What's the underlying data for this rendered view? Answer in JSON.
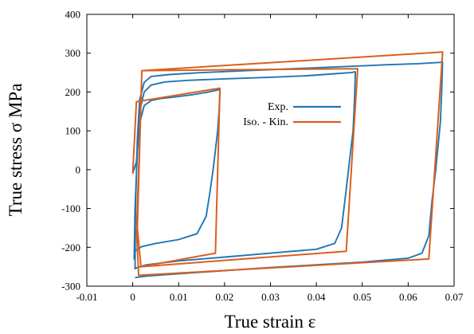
{
  "chart_data": {
    "type": "line",
    "xlabel": "True strain ε",
    "ylabel": "True stress σ MPa",
    "xlim": [
      -0.01,
      0.07
    ],
    "ylim": [
      -300,
      400
    ],
    "xticks": [
      "-0.01",
      "0",
      "0.01",
      "0.02",
      "0.03",
      "0.04",
      "0.05",
      "0.06",
      "0.07"
    ],
    "yticks": [
      "-300",
      "-200",
      "-100",
      "0",
      "100",
      "200",
      "300",
      "400"
    ],
    "grid": false,
    "legend_position": "center",
    "series": [
      {
        "name": "Exp.",
        "color": "#1f77b4",
        "x": [
          0.0,
          0.0008,
          0.0015,
          0.0025,
          0.004,
          0.006,
          0.009,
          0.013,
          0.0165,
          0.0185,
          0.019,
          0.0188,
          0.0185,
          0.018,
          0.0175,
          0.0168,
          0.016,
          0.014,
          0.01,
          0.005,
          0.002,
          0.001,
          0.0005,
          0.0003,
          0.0005,
          0.001,
          0.0015,
          0.0025,
          0.004,
          0.007,
          0.012,
          0.02,
          0.03,
          0.038,
          0.044,
          0.0475,
          0.0485,
          0.0483,
          0.048,
          0.0475,
          0.047,
          0.0462,
          0.0455,
          0.044,
          0.04,
          0.03,
          0.02,
          0.01,
          0.003,
          0.001,
          0.0005,
          0.0006,
          0.001,
          0.0015,
          0.0025,
          0.004,
          0.008,
          0.015,
          0.025,
          0.035,
          0.045,
          0.055,
          0.062,
          0.0665,
          0.0675,
          0.0673,
          0.067,
          0.0665,
          0.066,
          0.0652,
          0.0645,
          0.063,
          0.06,
          0.05,
          0.04,
          0.03,
          0.02,
          0.01,
          0.003,
          0.001,
          0.0005
        ],
        "y": [
          -10,
          20,
          120,
          165,
          178,
          183,
          187,
          193,
          200,
          205,
          207,
          150,
          100,
          50,
          0,
          -60,
          -120,
          -165,
          -180,
          -190,
          -198,
          -205,
          -210,
          -230,
          -100,
          50,
          150,
          200,
          218,
          226,
          230,
          234,
          238,
          242,
          247,
          250,
          252,
          180,
          100,
          50,
          0,
          -80,
          -150,
          -190,
          -205,
          -215,
          -225,
          -235,
          -245,
          -252,
          -255,
          -100,
          80,
          180,
          225,
          240,
          245,
          250,
          255,
          260,
          265,
          270,
          273,
          276,
          277,
          200,
          120,
          60,
          0,
          -80,
          -170,
          -215,
          -228,
          -238,
          -245,
          -252,
          -260,
          -268,
          -274,
          -277,
          -278
        ]
      },
      {
        "name": "Iso. - Kin.",
        "color": "#d95f1f",
        "x": [
          0.0,
          0.0008,
          0.019,
          0.018,
          0.0018,
          0.0009,
          0.002,
          0.049,
          0.0465,
          0.0018,
          0.001,
          0.002,
          0.0675,
          0.0645,
          0.0013,
          0.0008
        ],
        "y": [
          -10,
          175,
          210,
          -215,
          -250,
          -140,
          255,
          260,
          -210,
          -250,
          -150,
          255,
          303,
          -230,
          -272,
          -150
        ]
      }
    ]
  }
}
